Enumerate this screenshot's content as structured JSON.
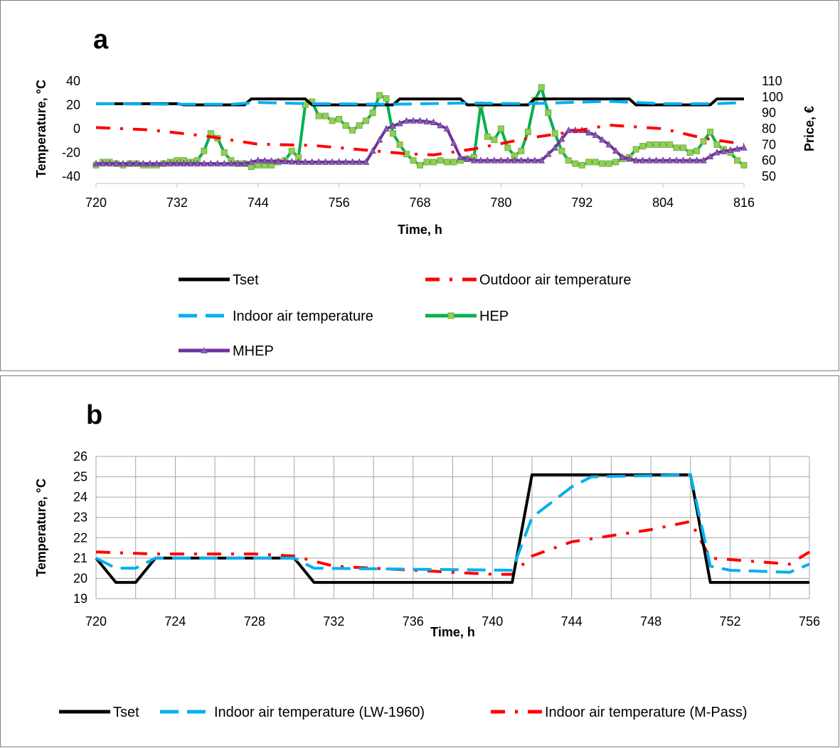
{
  "chart_data": [
    {
      "panel_label": "a",
      "type": "line",
      "xlabel": "Time, h",
      "ylabel": "Temperature, °C",
      "y2label": "Price, €",
      "xlim": [
        720,
        816
      ],
      "ylim": [
        -40,
        40
      ],
      "y2lim": [
        50,
        110
      ],
      "xticks": [
        "720",
        "732",
        "744",
        "756",
        "768",
        "780",
        "792",
        "804",
        "816"
      ],
      "yticks": [
        "40",
        "20",
        "0",
        "-20",
        "-40"
      ],
      "y2ticks": [
        "110",
        "100",
        "90",
        "80",
        "70",
        "60",
        "50"
      ],
      "grid": false,
      "legend_position": "bottom",
      "series": [
        {
          "name": "Tset",
          "axis": "left",
          "color": "#000000",
          "style": "solid",
          "x": [
            720,
            723,
            723.5,
            732,
            733,
            742,
            743,
            751,
            752,
            764,
            765,
            774,
            775,
            784,
            785,
            790,
            791,
            799,
            800,
            811,
            812,
            816
          ],
          "y": [
            21,
            21,
            21,
            21,
            20,
            20,
            25,
            25,
            20,
            20,
            25,
            25,
            20,
            20,
            25,
            25,
            25,
            25,
            20,
            20,
            25,
            25
          ]
        },
        {
          "name": "Outdoor air temperature",
          "axis": "left",
          "color": "#FF0000",
          "style": "dashdot",
          "x": [
            720,
            728,
            736,
            744,
            752,
            760,
            766,
            770,
            776,
            784,
            790,
            796,
            804,
            810,
            816
          ],
          "y": [
            1,
            -1,
            -6,
            -13,
            -14,
            -18,
            -21,
            -22,
            -17,
            -8,
            -3,
            3,
            0,
            -8,
            -13
          ]
        },
        {
          "name": "Indoor air temperature",
          "axis": "left",
          "color": "#00B0F0",
          "style": "dashed",
          "x": [
            720,
            732,
            740,
            744,
            752,
            764,
            774,
            784,
            790,
            796,
            804,
            812,
            816
          ],
          "y": [
            21,
            20.5,
            20.5,
            22,
            21,
            20.5,
            21.5,
            21,
            22,
            23,
            21,
            21,
            22
          ]
        },
        {
          "name": "HEP",
          "axis": "right",
          "color": "#00B050",
          "style": "solid-marker-square",
          "x": [
            720,
            721,
            722,
            723,
            724,
            725,
            726,
            727,
            728,
            729,
            730,
            731,
            732,
            733,
            734,
            735,
            736,
            737,
            738,
            739,
            740,
            741,
            742,
            743,
            744,
            745,
            746,
            747,
            748,
            749,
            750,
            751,
            752,
            753,
            754,
            755,
            756,
            757,
            758,
            759,
            760,
            761,
            762,
            763,
            764,
            765,
            766,
            767,
            768,
            769,
            770,
            771,
            772,
            773,
            774,
            775,
            776,
            777,
            778,
            779,
            780,
            781,
            782,
            783,
            784,
            785,
            786,
            787,
            788,
            789,
            790,
            791,
            792,
            793,
            794,
            795,
            796,
            797,
            798,
            799,
            800,
            801,
            802,
            803,
            804,
            805,
            806,
            807,
            808,
            809,
            810,
            811,
            812,
            813,
            814,
            815,
            816
          ],
          "y": [
            57,
            59,
            59,
            58,
            57,
            58,
            58,
            57,
            57,
            57,
            58,
            59,
            60,
            60,
            59,
            60,
            66,
            77,
            74,
            65,
            60,
            58,
            58,
            56,
            57,
            57,
            57,
            59,
            60,
            66,
            62,
            95,
            97,
            88,
            88,
            85,
            86,
            82,
            79,
            82,
            85,
            90,
            101,
            99,
            77,
            70,
            64,
            60,
            57,
            59,
            59,
            60,
            59,
            59,
            60,
            61,
            62,
            95,
            75,
            73,
            80,
            68,
            63,
            66,
            78,
            98,
            106,
            90,
            77,
            66,
            60,
            58,
            57,
            59,
            59,
            58,
            58,
            59,
            61,
            62,
            67,
            69,
            70,
            70,
            70,
            70,
            68,
            68,
            65,
            66,
            72,
            78,
            70,
            67,
            65,
            60,
            57
          ]
        },
        {
          "name": "MHEP",
          "axis": "right",
          "color": "#7030A0",
          "style": "solid-marker-triangle",
          "x": [
            720,
            726,
            732,
            738,
            742,
            744,
            750,
            756,
            760,
            763,
            766,
            768,
            770,
            772,
            774,
            776,
            780,
            786,
            788,
            790,
            792,
            794,
            796,
            798,
            800,
            806,
            810,
            812,
            816
          ],
          "y": [
            58,
            58,
            58,
            58,
            58,
            60,
            59,
            59,
            59,
            80,
            85,
            85,
            84,
            80,
            62,
            60,
            60,
            60,
            68,
            79,
            79,
            76,
            70,
            62,
            60,
            60,
            60,
            65,
            68
          ]
        }
      ]
    },
    {
      "panel_label": "b",
      "type": "line",
      "xlabel": "Time, h",
      "ylabel": "Temperature, °C",
      "xlim": [
        720,
        756
      ],
      "ylim": [
        19,
        26
      ],
      "xticks": [
        "720",
        "724",
        "728",
        "732",
        "736",
        "740",
        "744",
        "748",
        "752",
        "756"
      ],
      "yticks": [
        "26",
        "25",
        "24",
        "23",
        "22",
        "21",
        "20",
        "19"
      ],
      "grid": true,
      "legend_position": "bottom",
      "series": [
        {
          "name": "Tset",
          "color": "#000000",
          "style": "solid",
          "x": [
            720,
            721,
            722,
            723,
            730,
            731,
            741,
            742,
            750,
            751,
            756
          ],
          "y": [
            21,
            19.8,
            19.8,
            21,
            21,
            19.8,
            19.8,
            25.1,
            25.1,
            19.8,
            19.8
          ]
        },
        {
          "name": "Indoor air temperature (LW-1960)",
          "color": "#00B0F0",
          "style": "dashed",
          "x": [
            720,
            721,
            722,
            723,
            730,
            731,
            741,
            742,
            744,
            745,
            750,
            751,
            752,
            755,
            756
          ],
          "y": [
            21,
            20.5,
            20.5,
            21,
            21,
            20.5,
            20.4,
            23,
            24.5,
            25,
            25.1,
            20.6,
            20.4,
            20.3,
            20.7
          ]
        },
        {
          "name": "Indoor air temperature (M-Pass)",
          "color": "#FF0000",
          "style": "dashdot",
          "x": [
            720,
            723,
            728,
            730,
            732,
            736,
            740,
            741,
            742,
            744,
            748,
            750,
            751,
            755,
            756
          ],
          "y": [
            21.3,
            21.2,
            21.2,
            21.1,
            20.6,
            20.4,
            20.2,
            20.2,
            21.1,
            21.8,
            22.4,
            22.8,
            21,
            20.7,
            21.3
          ]
        }
      ]
    }
  ]
}
